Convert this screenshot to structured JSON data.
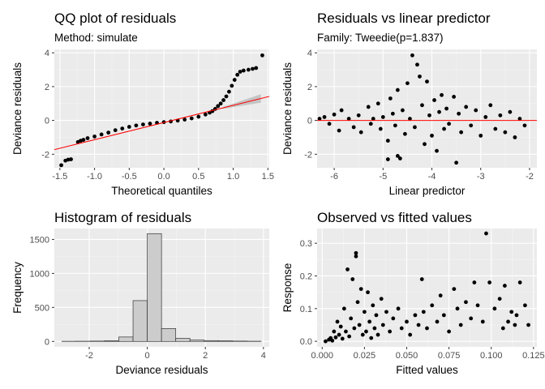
{
  "chart_data": [
    {
      "type": "scatter",
      "title": "QQ plot of residuals",
      "subtitle": "Method: simulate",
      "xlabel": "Theoretical quantiles",
      "ylabel": "Deviance residuals",
      "xlim": [
        -1.58,
        1.52
      ],
      "ylim": [
        -2.8,
        4.2
      ],
      "xticks": [
        -1.5,
        -1.0,
        -0.5,
        0.0,
        0.5,
        1.0,
        1.5
      ],
      "xtick_labels": [
        "-1.5",
        "-1.0",
        "-0.5",
        "0.0",
        "0.5",
        "1.0",
        "1.5"
      ],
      "yticks": [
        -2,
        0,
        2,
        4
      ],
      "ytick_labels": [
        "-2",
        "0",
        "2",
        "4"
      ],
      "reference_line": {
        "color": "#ff0000",
        "from": [
          -1.58,
          -1.73
        ],
        "to": [
          1.52,
          1.42
        ]
      },
      "confidence_band": {
        "color": "#b3b3b3",
        "x_from": 0.85,
        "x_to": 1.4
      },
      "points": [
        [
          -1.48,
          -2.65
        ],
        [
          -1.42,
          -2.38
        ],
        [
          -1.38,
          -2.32
        ],
        [
          -1.34,
          -2.3
        ],
        [
          -1.24,
          -1.28
        ],
        [
          -1.2,
          -1.2
        ],
        [
          -1.16,
          -1.15
        ],
        [
          -1.1,
          -1.05
        ],
        [
          -1.0,
          -0.95
        ],
        [
          -0.9,
          -0.83
        ],
        [
          -0.8,
          -0.72
        ],
        [
          -0.7,
          -0.58
        ],
        [
          -0.6,
          -0.48
        ],
        [
          -0.5,
          -0.38
        ],
        [
          -0.4,
          -0.3
        ],
        [
          -0.3,
          -0.24
        ],
        [
          -0.2,
          -0.19
        ],
        [
          -0.1,
          -0.14
        ],
        [
          0.0,
          -0.1
        ],
        [
          0.1,
          -0.06
        ],
        [
          0.2,
          -0.01
        ],
        [
          0.3,
          0.05
        ],
        [
          0.4,
          0.12
        ],
        [
          0.5,
          0.22
        ],
        [
          0.6,
          0.35
        ],
        [
          0.66,
          0.46
        ],
        [
          0.7,
          0.55
        ],
        [
          0.74,
          0.68
        ],
        [
          0.78,
          0.85
        ],
        [
          0.82,
          1.0
        ],
        [
          0.86,
          1.2
        ],
        [
          0.9,
          1.42
        ],
        [
          0.94,
          1.7
        ],
        [
          0.98,
          2.05
        ],
        [
          1.02,
          2.4
        ],
        [
          1.06,
          2.7
        ],
        [
          1.1,
          2.88
        ],
        [
          1.15,
          2.95
        ],
        [
          1.22,
          3.0
        ],
        [
          1.28,
          3.05
        ],
        [
          1.33,
          3.1
        ],
        [
          1.42,
          3.85
        ]
      ]
    },
    {
      "type": "scatter",
      "title": "Residuals vs linear predictor",
      "subtitle": "Family: Tweedie(p=1.837)",
      "xlabel": "Linear predictor",
      "ylabel": "Deviance residuals",
      "xlim": [
        -6.35,
        -1.85
      ],
      "ylim": [
        -2.8,
        4.2
      ],
      "xticks": [
        -6,
        -5,
        -4,
        -3,
        -2
      ],
      "xtick_labels": [
        "-6",
        "-5",
        "-4",
        "-3",
        "-2"
      ],
      "yticks": [
        -2,
        0,
        2,
        4
      ],
      "ytick_labels": [
        "-2",
        "0",
        "2",
        "4"
      ],
      "reference_line": {
        "color": "#ff0000",
        "y": 0
      },
      "points": [
        [
          -6.3,
          0.1
        ],
        [
          -6.2,
          0.2
        ],
        [
          -6.1,
          -0.2
        ],
        [
          -6.0,
          0.35
        ],
        [
          -5.9,
          -0.6
        ],
        [
          -5.85,
          0.6
        ],
        [
          -5.7,
          0.1
        ],
        [
          -5.6,
          -0.4
        ],
        [
          -5.5,
          0.3
        ],
        [
          -5.45,
          -0.7
        ],
        [
          -5.3,
          0.8
        ],
        [
          -5.25,
          -0.2
        ],
        [
          -5.2,
          0.1
        ],
        [
          -5.1,
          1.0
        ],
        [
          -5.05,
          -0.5
        ],
        [
          -5.0,
          0.2
        ],
        [
          -4.9,
          -1.2
        ],
        [
          -4.85,
          1.3
        ],
        [
          -4.8,
          0.4
        ],
        [
          -4.75,
          -0.3
        ],
        [
          -4.7,
          1.8
        ],
        [
          -4.65,
          -2.25
        ],
        [
          -4.6,
          0.6
        ],
        [
          -4.55,
          -0.8
        ],
        [
          -4.5,
          2.2
        ],
        [
          -4.45,
          0.1
        ],
        [
          -4.4,
          3.85
        ],
        [
          -4.35,
          -0.4
        ],
        [
          -4.3,
          3.3
        ],
        [
          -4.25,
          2.6
        ],
        [
          -4.2,
          0.9
        ],
        [
          -4.15,
          -1.4
        ],
        [
          -4.1,
          2.3
        ],
        [
          -4.05,
          0.3
        ],
        [
          -4.0,
          -0.9
        ],
        [
          -3.95,
          1.2
        ],
        [
          -3.9,
          -1.8
        ],
        [
          -3.85,
          0.5
        ],
        [
          -3.8,
          1.5
        ],
        [
          -3.75,
          -0.5
        ],
        [
          -3.7,
          0.7
        ],
        [
          -3.65,
          -0.2
        ],
        [
          -3.55,
          1.4
        ],
        [
          -3.5,
          -2.5
        ],
        [
          -3.45,
          0.4
        ],
        [
          -3.4,
          -0.7
        ],
        [
          -3.3,
          0.8
        ],
        [
          -3.2,
          -0.3
        ],
        [
          -3.1,
          0.6
        ],
        [
          -3.0,
          -0.9
        ],
        [
          -2.9,
          0.2
        ],
        [
          -2.8,
          0.9
        ],
        [
          -2.7,
          -0.5
        ],
        [
          -2.6,
          0.3
        ],
        [
          -2.5,
          -0.7
        ],
        [
          -2.4,
          0.5
        ],
        [
          -2.3,
          -1.0
        ],
        [
          -2.2,
          0.1
        ],
        [
          -2.1,
          -0.3
        ],
        [
          -4.9,
          -2.3
        ],
        [
          -4.7,
          -2.1
        ]
      ]
    },
    {
      "type": "bar",
      "title": "Histogram of residuals",
      "xlabel": "Deviance residuals",
      "ylabel": "Frequency",
      "xlim": [
        -3.2,
        4.2
      ],
      "ylim": [
        -80,
        1660
      ],
      "xticks": [
        -2,
        0,
        2,
        4
      ],
      "xtick_labels": [
        "-2",
        "0",
        "2",
        "4"
      ],
      "yticks": [
        0,
        500,
        1000,
        1500
      ],
      "ytick_labels": [
        "0",
        "500",
        "1000",
        "1500"
      ],
      "bar_color": "#cccccc",
      "bin_edges": [
        -2.94,
        -2.45,
        -1.96,
        -1.47,
        -0.98,
        -0.49,
        0.0,
        0.49,
        0.98,
        1.47,
        1.96,
        2.45,
        2.94,
        3.43,
        3.92
      ],
      "values": [
        2,
        3,
        5,
        10,
        65,
        600,
        1585,
        190,
        45,
        20,
        12,
        8,
        5,
        3
      ]
    },
    {
      "type": "scatter",
      "title": "Observed vs fitted values",
      "xlabel": "Fitted values",
      "ylabel": "Response",
      "xlim": [
        -0.003,
        0.127
      ],
      "ylim": [
        -0.017,
        0.345
      ],
      "xticks": [
        0.0,
        0.025,
        0.05,
        0.075,
        0.1,
        0.125
      ],
      "xtick_labels": [
        "0.000",
        "0.025",
        "0.050",
        "0.075",
        "0.100",
        "0.125"
      ],
      "yticks": [
        0.0,
        0.1,
        0.2,
        0.3
      ],
      "ytick_labels": [
        "0.0",
        "0.1",
        "0.2",
        "0.3"
      ],
      "points": [
        [
          0.002,
          0.0
        ],
        [
          0.004,
          0.005
        ],
        [
          0.005,
          0.01
        ],
        [
          0.006,
          0.002
        ],
        [
          0.007,
          0.03
        ],
        [
          0.008,
          0.012
        ],
        [
          0.009,
          0.06
        ],
        [
          0.01,
          0.02
        ],
        [
          0.011,
          0.045
        ],
        [
          0.012,
          0.008
        ],
        [
          0.013,
          0.1
        ],
        [
          0.014,
          0.03
        ],
        [
          0.015,
          0.22
        ],
        [
          0.016,
          0.015
        ],
        [
          0.017,
          0.07
        ],
        [
          0.018,
          0.19
        ],
        [
          0.019,
          0.04
        ],
        [
          0.02,
          0.26
        ],
        [
          0.02,
          0.27
        ],
        [
          0.021,
          0.12
        ],
        [
          0.022,
          0.05
        ],
        [
          0.023,
          0.16
        ],
        [
          0.024,
          0.02
        ],
        [
          0.025,
          0.09
        ],
        [
          0.026,
          0.03
        ],
        [
          0.027,
          0.15
        ],
        [
          0.028,
          0.06
        ],
        [
          0.029,
          0.01
        ],
        [
          0.03,
          0.11
        ],
        [
          0.031,
          0.04
        ],
        [
          0.032,
          0.08
        ],
        [
          0.033,
          0.02
        ],
        [
          0.035,
          0.13
        ],
        [
          0.036,
          0.05
        ],
        [
          0.038,
          0.09
        ],
        [
          0.04,
          0.03
        ],
        [
          0.042,
          0.07
        ],
        [
          0.045,
          0.1
        ],
        [
          0.047,
          0.04
        ],
        [
          0.05,
          0.06
        ],
        [
          0.052,
          0.02
        ],
        [
          0.055,
          0.08
        ],
        [
          0.057,
          0.05
        ],
        [
          0.059,
          0.19
        ],
        [
          0.06,
          0.09
        ],
        [
          0.062,
          0.04
        ],
        [
          0.065,
          0.11
        ],
        [
          0.068,
          0.06
        ],
        [
          0.07,
          0.14
        ],
        [
          0.072,
          0.08
        ],
        [
          0.075,
          0.03
        ],
        [
          0.078,
          0.16
        ],
        [
          0.08,
          0.1
        ],
        [
          0.082,
          0.05
        ],
        [
          0.085,
          0.12
        ],
        [
          0.088,
          0.07
        ],
        [
          0.09,
          0.18
        ],
        [
          0.092,
          0.11
        ],
        [
          0.095,
          0.06
        ],
        [
          0.097,
          0.33
        ],
        [
          0.099,
          0.18
        ],
        [
          0.102,
          0.1
        ],
        [
          0.105,
          0.13
        ],
        [
          0.108,
          0.17
        ],
        [
          0.11,
          0.06
        ],
        [
          0.112,
          0.09
        ],
        [
          0.115,
          0.08
        ],
        [
          0.117,
          0.18
        ],
        [
          0.12,
          0.11
        ],
        [
          0.122,
          0.05
        ],
        [
          0.107,
          0.04
        ],
        [
          0.114,
          0.05
        ]
      ]
    }
  ]
}
